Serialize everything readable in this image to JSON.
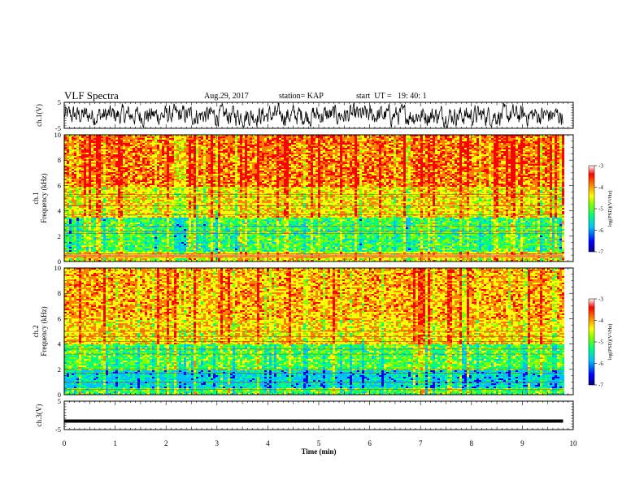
{
  "header": {
    "title": "VLF Spectra",
    "date": "Aug.29, 2017",
    "station": "station= KAP",
    "start": "start  UT =   19: 40: 1"
  },
  "chart_data": [
    {
      "type": "line",
      "panel": "ch1-waveform",
      "ylabel": "ch.1(V)",
      "ylim": [
        -5,
        5
      ],
      "yticks": [
        "5",
        "-5"
      ],
      "xlim": [
        0,
        10
      ],
      "description": "dense noisy waveform across 0 to ~9.8 min"
    },
    {
      "type": "heatmap",
      "panel": "ch1-spectrogram",
      "ylabel": [
        "ch.1",
        "Frequency  (kHz)"
      ],
      "ylim": [
        0,
        10
      ],
      "yticks": [
        "0",
        "2",
        "4",
        "6",
        "8",
        "10"
      ],
      "xlim": [
        0,
        10
      ],
      "data_end_min": 9.8,
      "colorbar": {
        "label": "log(PSD)(V²/Hz)",
        "ticks": [
          "-3",
          "-4",
          "-5",
          "-6",
          "-7"
        ],
        "range": [
          -7,
          -3
        ]
      },
      "colors": [
        "#000090",
        "#0000ff",
        "#00c0ff",
        "#00ff80",
        "#80ff00",
        "#ffff00",
        "#ff8000",
        "#ff0000",
        "#ffffff"
      ]
    },
    {
      "type": "heatmap",
      "panel": "ch2-spectrogram",
      "ylabel": [
        "ch.2",
        "Frequency  (kHz)"
      ],
      "ylim": [
        0,
        10
      ],
      "yticks": [
        "0",
        "2",
        "4",
        "6",
        "8",
        "10"
      ],
      "xlim": [
        0,
        10
      ],
      "data_end_min": 9.8,
      "colorbar": {
        "label": "log(PSD)(V²/Hz)",
        "ticks": [
          "-3",
          "-4",
          "-5",
          "-6",
          "-7"
        ],
        "range": [
          -7,
          -3
        ]
      }
    },
    {
      "type": "line",
      "panel": "ch3-waveform",
      "ylabel": "ch.3(V)",
      "ylim": [
        -5,
        5
      ],
      "yticks": [
        "5",
        "-5"
      ],
      "xlim": [
        0,
        10
      ],
      "constant_value": -2
    }
  ],
  "x_axis": {
    "label": "Time  (min)",
    "ticks": [
      "0",
      "1",
      "2",
      "3",
      "4",
      "5",
      "6",
      "7",
      "8",
      "9",
      "10"
    ]
  }
}
